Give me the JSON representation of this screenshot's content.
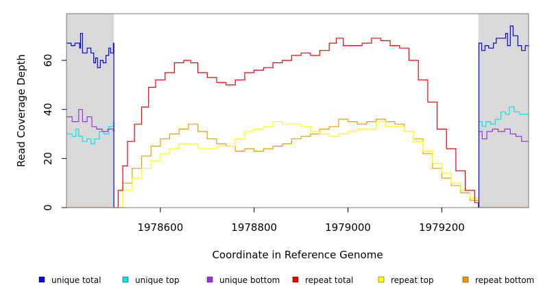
{
  "chart_data": {
    "type": "line",
    "xlabel": "Coordinate in Reference Genome",
    "ylabel": "Read Coverage Depth",
    "xlim": [
      1978400,
      1979385
    ],
    "ylim": [
      0,
      79
    ],
    "x_ticks": [
      1978600,
      1978800,
      1979000,
      1979200
    ],
    "y_ticks": [
      0,
      20,
      40,
      60
    ],
    "shaded_regions": [
      {
        "from": 1978400,
        "to": 1978501
      },
      {
        "from": 1979278,
        "to": 1979385
      }
    ],
    "shade_color": "#d9d9d9",
    "legend_position": "bottom",
    "series": [
      {
        "name": "unique total",
        "color": "#0000dd",
        "points": [
          [
            1978400,
            67
          ],
          [
            1978410,
            66
          ],
          [
            1978418,
            67
          ],
          [
            1978428,
            65
          ],
          [
            1978430,
            71
          ],
          [
            1978434,
            63
          ],
          [
            1978444,
            65
          ],
          [
            1978452,
            63
          ],
          [
            1978458,
            59
          ],
          [
            1978462,
            61
          ],
          [
            1978466,
            57
          ],
          [
            1978472,
            60
          ],
          [
            1978478,
            59
          ],
          [
            1978484,
            62
          ],
          [
            1978490,
            65
          ],
          [
            1978494,
            63
          ],
          [
            1978500,
            67
          ],
          [
            1978501,
            0
          ],
          [
            1979278,
            0
          ],
          [
            1979279,
            67
          ],
          [
            1979285,
            64
          ],
          [
            1979292,
            66
          ],
          [
            1979300,
            65
          ],
          [
            1979310,
            67
          ],
          [
            1979316,
            69
          ],
          [
            1979328,
            69
          ],
          [
            1979336,
            71
          ],
          [
            1979340,
            66
          ],
          [
            1979346,
            74
          ],
          [
            1979352,
            70
          ],
          [
            1979362,
            66
          ],
          [
            1979370,
            64
          ],
          [
            1979378,
            66
          ],
          [
            1979385,
            65
          ]
        ]
      },
      {
        "name": "unique top",
        "color": "#00e5e5",
        "points": [
          [
            1978400,
            30
          ],
          [
            1978412,
            29
          ],
          [
            1978420,
            32
          ],
          [
            1978426,
            29
          ],
          [
            1978434,
            27
          ],
          [
            1978444,
            28
          ],
          [
            1978452,
            26
          ],
          [
            1978460,
            28
          ],
          [
            1978470,
            31
          ],
          [
            1978480,
            30
          ],
          [
            1978490,
            33
          ],
          [
            1978500,
            35
          ],
          [
            1979279,
            35
          ],
          [
            1979286,
            33
          ],
          [
            1979294,
            35
          ],
          [
            1979304,
            34
          ],
          [
            1979314,
            36
          ],
          [
            1979326,
            39
          ],
          [
            1979336,
            38
          ],
          [
            1979344,
            41
          ],
          [
            1979354,
            39
          ],
          [
            1979366,
            38
          ],
          [
            1979385,
            38
          ]
        ]
      },
      {
        "name": "unique bottom",
        "color": "#9933dd",
        "points": [
          [
            1978400,
            37
          ],
          [
            1978412,
            35
          ],
          [
            1978426,
            40
          ],
          [
            1978434,
            35
          ],
          [
            1978444,
            37
          ],
          [
            1978454,
            33
          ],
          [
            1978464,
            32
          ],
          [
            1978476,
            31
          ],
          [
            1978488,
            32
          ],
          [
            1978500,
            31
          ],
          [
            1979279,
            31
          ],
          [
            1979286,
            28
          ],
          [
            1979296,
            31
          ],
          [
            1979308,
            32
          ],
          [
            1979320,
            31
          ],
          [
            1979334,
            32
          ],
          [
            1979346,
            30
          ],
          [
            1979358,
            29
          ],
          [
            1979370,
            27
          ],
          [
            1979385,
            27
          ]
        ]
      },
      {
        "name": "repeat total",
        "color": "#ee0000",
        "points": [
          [
            1978501,
            0
          ],
          [
            1978510,
            7
          ],
          [
            1978520,
            17
          ],
          [
            1978530,
            27
          ],
          [
            1978545,
            34
          ],
          [
            1978560,
            41
          ],
          [
            1978575,
            49
          ],
          [
            1978590,
            52
          ],
          [
            1978610,
            55
          ],
          [
            1978630,
            59
          ],
          [
            1978650,
            60
          ],
          [
            1978665,
            59
          ],
          [
            1978680,
            55
          ],
          [
            1978700,
            53
          ],
          [
            1978720,
            51
          ],
          [
            1978740,
            50
          ],
          [
            1978760,
            52
          ],
          [
            1978780,
            55
          ],
          [
            1978800,
            56
          ],
          [
            1978820,
            57
          ],
          [
            1978840,
            59
          ],
          [
            1978860,
            60
          ],
          [
            1978880,
            62
          ],
          [
            1978900,
            63
          ],
          [
            1978920,
            62
          ],
          [
            1978940,
            64
          ],
          [
            1978960,
            67
          ],
          [
            1978975,
            69
          ],
          [
            1978990,
            66
          ],
          [
            1979010,
            66
          ],
          [
            1979030,
            67
          ],
          [
            1979050,
            69
          ],
          [
            1979070,
            68
          ],
          [
            1979090,
            66
          ],
          [
            1979110,
            65
          ],
          [
            1979130,
            60
          ],
          [
            1979150,
            52
          ],
          [
            1979170,
            43
          ],
          [
            1979190,
            32
          ],
          [
            1979210,
            24
          ],
          [
            1979230,
            15
          ],
          [
            1979250,
            7
          ],
          [
            1979270,
            2
          ],
          [
            1979278,
            0
          ]
        ]
      },
      {
        "name": "repeat top",
        "color": "#ffff00",
        "points": [
          [
            1978501,
            0
          ],
          [
            1978520,
            7
          ],
          [
            1978540,
            12
          ],
          [
            1978560,
            16
          ],
          [
            1978580,
            19
          ],
          [
            1978600,
            22
          ],
          [
            1978620,
            24
          ],
          [
            1978640,
            26
          ],
          [
            1978660,
            26
          ],
          [
            1978680,
            24
          ],
          [
            1978700,
            24
          ],
          [
            1978720,
            25
          ],
          [
            1978740,
            25
          ],
          [
            1978760,
            28
          ],
          [
            1978780,
            31
          ],
          [
            1978800,
            32
          ],
          [
            1978820,
            33
          ],
          [
            1978840,
            35
          ],
          [
            1978860,
            34
          ],
          [
            1978880,
            34
          ],
          [
            1978900,
            33
          ],
          [
            1978920,
            31
          ],
          [
            1978940,
            30
          ],
          [
            1978960,
            29
          ],
          [
            1978980,
            30
          ],
          [
            1979000,
            31
          ],
          [
            1979020,
            32
          ],
          [
            1979040,
            32
          ],
          [
            1979060,
            35
          ],
          [
            1979080,
            33
          ],
          [
            1979100,
            33
          ],
          [
            1979120,
            31
          ],
          [
            1979140,
            27
          ],
          [
            1979160,
            23
          ],
          [
            1979180,
            18
          ],
          [
            1979200,
            14
          ],
          [
            1979220,
            10
          ],
          [
            1979240,
            7
          ],
          [
            1979260,
            4
          ],
          [
            1979278,
            0
          ]
        ]
      },
      {
        "name": "repeat bottom",
        "color": "#ee9900",
        "points": [
          [
            1978400,
            0
          ],
          [
            1978500,
            0
          ],
          [
            1978520,
            10
          ],
          [
            1978540,
            16
          ],
          [
            1978560,
            21
          ],
          [
            1978580,
            25
          ],
          [
            1978600,
            28
          ],
          [
            1978620,
            30
          ],
          [
            1978640,
            32
          ],
          [
            1978660,
            34
          ],
          [
            1978680,
            31
          ],
          [
            1978700,
            28
          ],
          [
            1978720,
            26
          ],
          [
            1978740,
            25
          ],
          [
            1978760,
            23
          ],
          [
            1978780,
            24
          ],
          [
            1978800,
            23
          ],
          [
            1978820,
            24
          ],
          [
            1978840,
            25
          ],
          [
            1978860,
            26
          ],
          [
            1978880,
            28
          ],
          [
            1978900,
            29
          ],
          [
            1978920,
            30
          ],
          [
            1978940,
            32
          ],
          [
            1978960,
            33
          ],
          [
            1978980,
            36
          ],
          [
            1979000,
            35
          ],
          [
            1979020,
            34
          ],
          [
            1979040,
            35
          ],
          [
            1979060,
            36
          ],
          [
            1979080,
            35
          ],
          [
            1979100,
            34
          ],
          [
            1979120,
            31
          ],
          [
            1979140,
            28
          ],
          [
            1979160,
            22
          ],
          [
            1979180,
            16
          ],
          [
            1979200,
            12
          ],
          [
            1979220,
            9
          ],
          [
            1979240,
            6
          ],
          [
            1979260,
            3
          ],
          [
            1979278,
            0
          ],
          [
            1979385,
            0
          ]
        ]
      }
    ]
  }
}
